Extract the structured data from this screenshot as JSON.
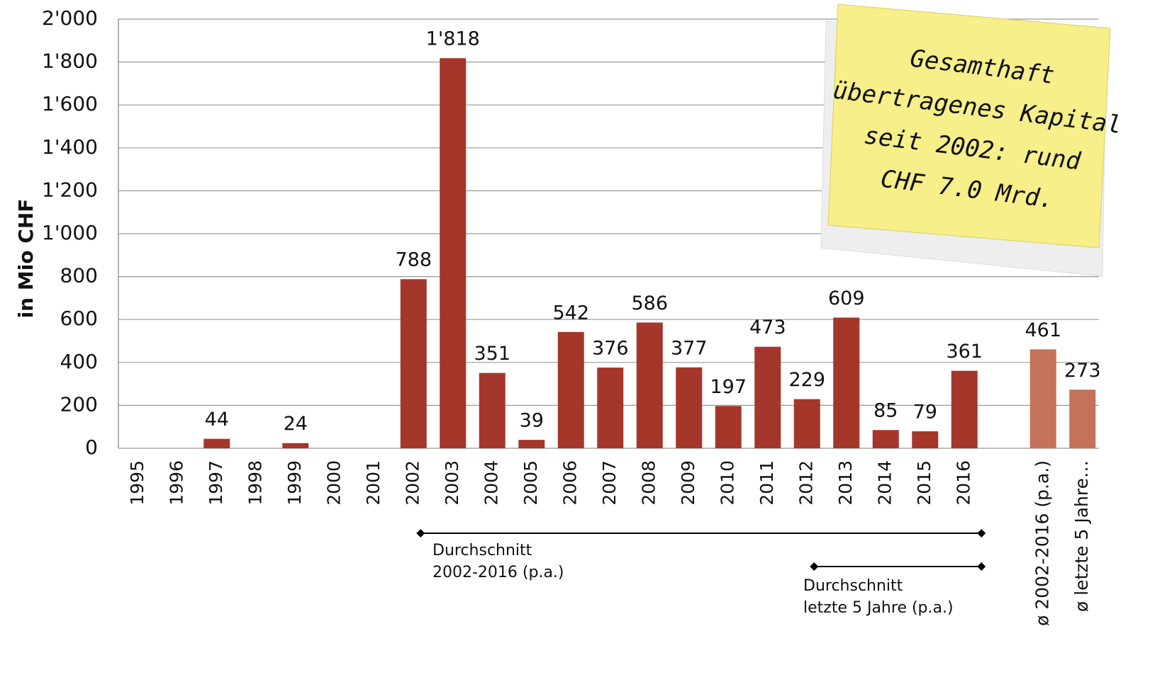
{
  "chart_data": {
    "type": "bar",
    "y_axis_label": "in Mio CHF",
    "categories": [
      "1995",
      "1996",
      "1997",
      "1998",
      "1999",
      "2000",
      "2001",
      "2002",
      "2003",
      "2004",
      "2005",
      "2006",
      "2007",
      "2008",
      "2009",
      "2010",
      "2011",
      "2012",
      "2013",
      "2014",
      "2015",
      "2016",
      null,
      "ø 2002-2016 (p.a.)",
      "ø letzte 5 Jahre…"
    ],
    "values": [
      null,
      null,
      44,
      null,
      24,
      null,
      null,
      788,
      1818,
      351,
      39,
      542,
      376,
      586,
      377,
      197,
      473,
      229,
      609,
      85,
      79,
      361,
      null,
      461,
      273
    ],
    "value_labels": [
      null,
      null,
      "44",
      null,
      "24",
      null,
      null,
      "788",
      "1'818",
      "351",
      "39",
      "542",
      "376",
      "586",
      "377",
      "197",
      "473",
      "229",
      "609",
      "85",
      "79",
      "361",
      null,
      "461",
      "273"
    ],
    "colors": [
      "#a5362a",
      "#a5362a",
      "#a5362a",
      "#a5362a",
      "#a5362a",
      "#a5362a",
      "#a5362a",
      "#a5362a",
      "#a5362a",
      "#a5362a",
      "#a5362a",
      "#a5362a",
      "#a5362a",
      "#a5362a",
      "#a5362a",
      "#a5362a",
      "#a5362a",
      "#a5362a",
      "#a5362a",
      "#a5362a",
      "#a5362a",
      "#a5362a",
      null,
      "#c4725a",
      "#c4725a"
    ],
    "ylim": [
      0,
      2000
    ],
    "yticks": [
      0,
      200,
      400,
      600,
      800,
      {
        "value": 1000,
        "label": "1'000"
      },
      {
        "value": 1200,
        "label": "1'200"
      },
      {
        "value": 1400,
        "label": "1'400"
      },
      {
        "value": 1600,
        "label": "1'600"
      },
      {
        "value": 1800,
        "label": "1'800"
      },
      {
        "value": 2000,
        "label": "2'000"
      }
    ],
    "grid": true,
    "annotations": [
      {
        "lines": [
          "Durchschnitt",
          "2002-2016 (p.a.)"
        ]
      },
      {
        "lines": [
          "Durchschnitt",
          "letzte 5 Jahre (p.a.)"
        ]
      }
    ],
    "note": {
      "lines": [
        "Gesamthaft",
        "übertragenes Kapital",
        "seit 2002: rund",
        "CHF 7.0 Mrd."
      ]
    }
  }
}
